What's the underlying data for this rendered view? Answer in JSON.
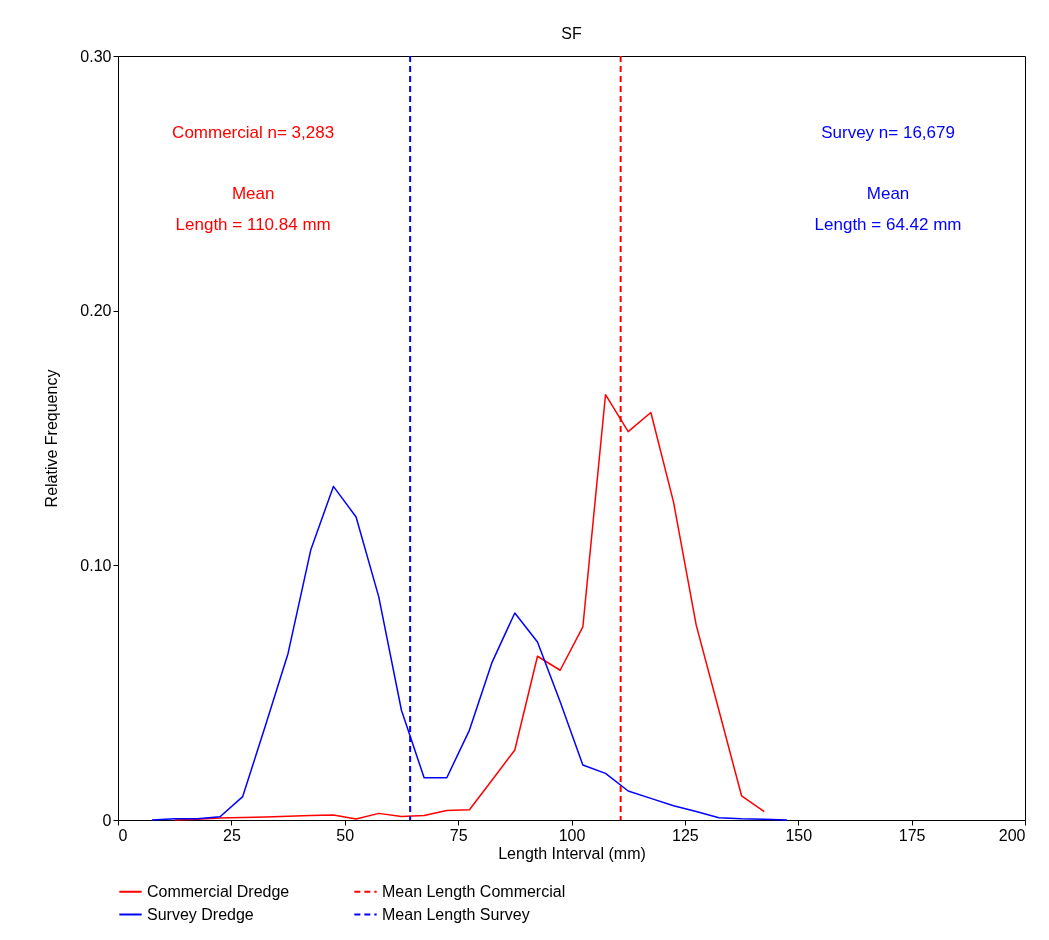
{
  "chart_data": {
    "type": "line",
    "title": "SF",
    "xlabel": "Length Interval (mm)",
    "ylabel": "Relative Frequency",
    "x": [
      7.5,
      12.5,
      17.5,
      22.5,
      27.5,
      32.5,
      37.5,
      42.5,
      47.5,
      52.5,
      57.5,
      62.5,
      67.5,
      72.5,
      77.5,
      82.5,
      87.5,
      92.5,
      97.5,
      102.5,
      107.5,
      112.5,
      117.5,
      122.5,
      127.5,
      132.5,
      137.5,
      142.5,
      147.5
    ],
    "series": [
      {
        "name": "Commercial Dredge",
        "color": "#ff0000",
        "values": [
          null,
          0,
          0.0003,
          0.0008,
          0.001,
          0.0012,
          0.0015,
          0.0018,
          0.002,
          0.0004,
          0.0026,
          0.0014,
          0.0018,
          0.0037,
          0.004,
          0.0157,
          0.0275,
          0.0643,
          0.0588,
          0.0758,
          0.167,
          0.1525,
          0.16,
          0.1248,
          0.0765,
          0.0431,
          0.0095,
          0.0033,
          null
        ]
      },
      {
        "name": "Survey Dredge",
        "color": "#0000ff",
        "values": [
          0,
          0.0005,
          0.0005,
          0.0013,
          0.0092,
          0.037,
          0.0654,
          0.106,
          0.131,
          0.119,
          0.0876,
          0.0431,
          0.0166,
          0.0166,
          0.0353,
          0.062,
          0.0813,
          0.0699,
          0.0464,
          0.0216,
          0.0183,
          0.0114,
          0.0085,
          0.0056,
          0.0033,
          0.0009,
          0.0005,
          0.0003,
          0
        ]
      }
    ],
    "ref_lines": [
      {
        "axis": "x",
        "value": 110.84,
        "label": "Mean Length Commercial",
        "color": "#ff0000",
        "line_style": "dashed"
      },
      {
        "axis": "x",
        "value": 64.42,
        "label": "Mean Length Survey",
        "color": "#0000ff",
        "line_style": "dashed"
      }
    ],
    "annotations": [
      "Commercial n= 3,283",
      "Mean",
      "Length = 110.84 mm",
      "Survey n= 16,679",
      "Mean",
      "Length = 64.42 mm"
    ],
    "xlim": [
      0,
      200
    ],
    "xticks": [
      0,
      25,
      50,
      75,
      100,
      125,
      150,
      175,
      200
    ],
    "ylim": [
      0,
      0.3
    ],
    "yticks": [
      0,
      {
        "value": 0.1,
        "label": "0.10"
      },
      {
        "value": 0.2,
        "label": "0.20"
      },
      {
        "value": 0.3,
        "label": "0.30"
      }
    ],
    "grid": false,
    "legend": "bottom",
    "marker": "none",
    "line_style": "solid"
  }
}
